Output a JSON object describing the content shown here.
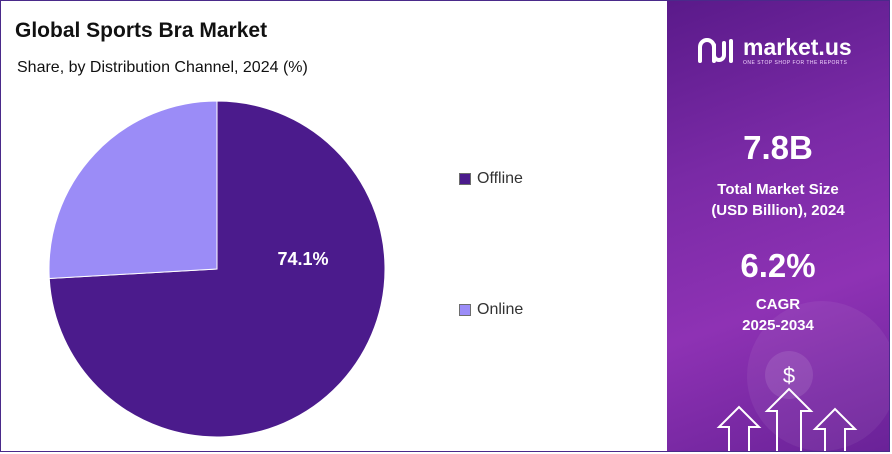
{
  "chart_data": {
    "type": "pie",
    "title": "Global Sports Bra Market",
    "subtitle": "Share, by Distribution Channel, 2024 (%)",
    "slices": [
      {
        "name": "Offline",
        "value": 74.1,
        "label": "74.1%",
        "color": "#4b1b8c"
      },
      {
        "name": "Online",
        "value": 25.9,
        "label": "",
        "color": "#9b8cf7"
      }
    ],
    "legend_position": "right"
  },
  "legend": {
    "offline": "Offline",
    "online": "Online"
  },
  "sidebar": {
    "brand_name": "market.us",
    "brand_tagline": "ONE STOP SHOP FOR THE REPORTS",
    "market_size_value": "7.8B",
    "market_size_label_line1": "Total Market Size",
    "market_size_label_line2": "(USD Billion), 2024",
    "cagr_value": "6.2%",
    "cagr_label_line1": "CAGR",
    "cagr_label_line2": "2025-2034",
    "dollar_symbol": "$"
  },
  "colors": {
    "offline": "#4b1b8c",
    "online": "#9b8cf7",
    "panel": "#7a2aa6"
  }
}
